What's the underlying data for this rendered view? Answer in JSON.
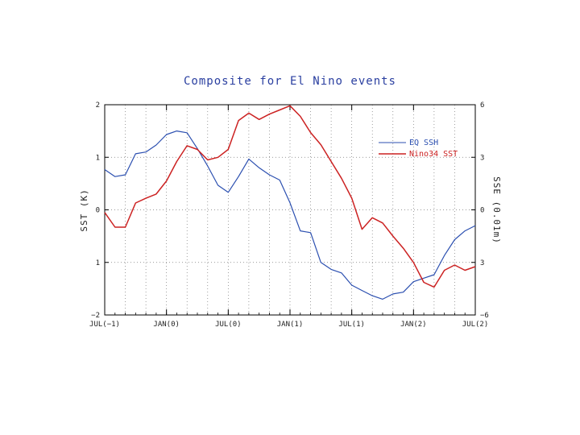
{
  "chart_data": {
    "type": "line",
    "title": "Composite for El Nino events",
    "ylabel_left": "SST (K)",
    "ylabel_right": "SSE (0.01m)",
    "ylim_left": [
      -2,
      2
    ],
    "ylim_right": [
      -6,
      6
    ],
    "yticks_left": [
      "2",
      "1",
      "0",
      "1",
      "−2"
    ],
    "yticks_right": [
      "6",
      "3",
      "0",
      "3",
      "−6"
    ],
    "xlim": [
      0,
      36
    ],
    "xticks": [
      {
        "x": 0,
        "label": "JUL(−1)"
      },
      {
        "x": 6,
        "label": "JAN(0)"
      },
      {
        "x": 12,
        "label": "JUL(0)"
      },
      {
        "x": 18,
        "label": "JAN(1)"
      },
      {
        "x": 24,
        "label": "JUL(1)"
      },
      {
        "x": 30,
        "label": "JAN(2)"
      },
      {
        "x": 36,
        "label": "JUL(2)"
      }
    ],
    "grid": true,
    "legend": "top-right",
    "series": [
      {
        "name": "EQ SSH",
        "color": "#2b4fb0",
        "axis": "right",
        "x": [
          0,
          1,
          2,
          3,
          4,
          5,
          6,
          7,
          8,
          9,
          10,
          11,
          12,
          13,
          14,
          15,
          16,
          17,
          18,
          19,
          20,
          21,
          22,
          23,
          24,
          25,
          26,
          27,
          28,
          29,
          30,
          31,
          32,
          33,
          34,
          35,
          36
        ],
        "values": [
          2.3,
          1.9,
          2.0,
          3.2,
          3.3,
          3.7,
          4.3,
          4.5,
          4.4,
          3.5,
          2.5,
          1.4,
          1.0,
          1.9,
          2.9,
          2.4,
          2.0,
          1.7,
          0.4,
          -1.2,
          -1.3,
          -3.0,
          -3.4,
          -3.6,
          -4.3,
          -4.6,
          -4.9,
          -5.1,
          -4.8,
          -4.7,
          -4.1,
          -3.9,
          -3.7,
          -2.6,
          -1.7,
          -1.2,
          -0.9
        ]
      },
      {
        "name": "Nino34 SST",
        "color": "#cc2222",
        "axis": "left",
        "x": [
          0,
          1,
          2,
          3,
          4,
          5,
          6,
          7,
          8,
          9,
          10,
          11,
          12,
          13,
          14,
          15,
          16,
          17,
          18,
          19,
          20,
          21,
          22,
          23,
          24,
          25,
          26,
          27,
          28,
          29,
          30,
          31,
          32,
          33,
          34,
          35,
          36
        ],
        "values": [
          -0.05,
          -0.33,
          -0.33,
          0.13,
          0.22,
          0.3,
          0.55,
          0.92,
          1.22,
          1.15,
          0.95,
          1.0,
          1.15,
          1.7,
          1.84,
          1.72,
          1.82,
          1.9,
          1.98,
          1.78,
          1.47,
          1.24,
          0.92,
          0.6,
          0.22,
          -0.37,
          -0.15,
          -0.25,
          -0.5,
          -0.73,
          -1.0,
          -1.38,
          -1.47,
          -1.15,
          -1.05,
          -1.15,
          -1.08
        ]
      }
    ]
  }
}
